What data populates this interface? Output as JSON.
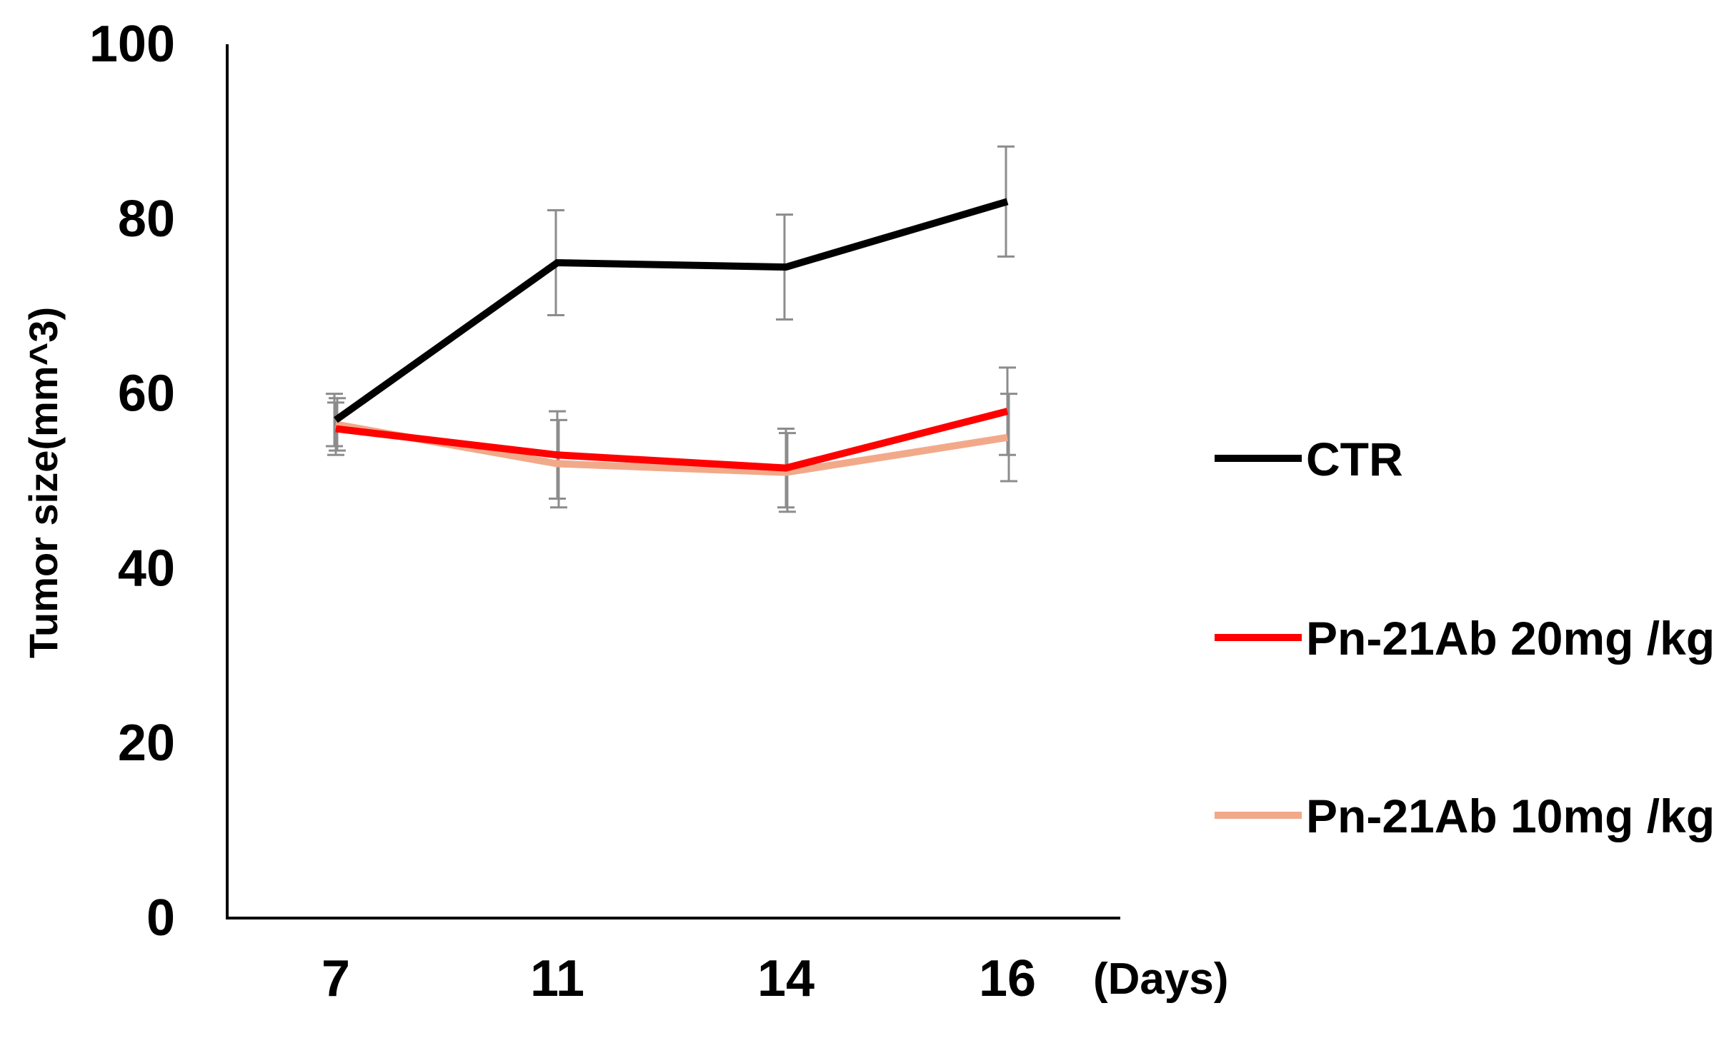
{
  "chart_data": {
    "type": "line",
    "title": "",
    "xlabel": "(Days)",
    "ylabel": "Tumor size(mm^3)",
    "categories": [
      "7",
      "11",
      "14",
      "16"
    ],
    "ylim": [
      0,
      100
    ],
    "yticks": [
      "0",
      "20",
      "40",
      "60",
      "80",
      "100"
    ],
    "grid": false,
    "legend_position": "right",
    "series": [
      {
        "name": "CTR",
        "color": "#000000",
        "values": [
          57,
          75,
          74.5,
          82
        ],
        "errors": [
          3,
          6,
          6,
          6.3
        ]
      },
      {
        "name": "Pn-21Ab 20mg /kg",
        "color": "#ff0000",
        "values": [
          56,
          53,
          51.5,
          58
        ],
        "errors": [
          3,
          5,
          4.5,
          5
        ]
      },
      {
        "name": "Pn-21Ab 10mg /kg",
        "color": "#f2a98a",
        "values": [
          56.5,
          52,
          51,
          55
        ],
        "errors": [
          3,
          5,
          4.5,
          5
        ]
      }
    ]
  }
}
